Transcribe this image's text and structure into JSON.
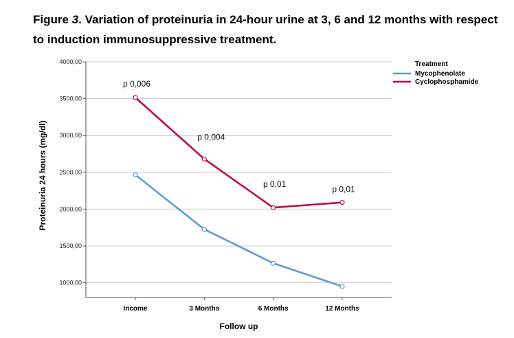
{
  "figure": {
    "title_prefix": "Figure",
    "title_number": "3",
    "title_rest": ". Variation of proteinuria in 24-hour urine at 3, 6 and 12 months with respect to induction immunosuppressive treatment."
  },
  "chart_data": {
    "type": "line",
    "categories": [
      "Income",
      "3 Months",
      "6 Months",
      "12 Months"
    ],
    "xlabel": "Follow up",
    "ylabel": "Proteinuria 24 hours (mg/dl)",
    "ylim": [
      800,
      4000
    ],
    "yticks": [
      "1000,00",
      "1500,00",
      "2000,00",
      "2500,00",
      "3000,00",
      "3500,00",
      "4000,00"
    ],
    "ytick_values": [
      1000,
      1500,
      2000,
      2500,
      3000,
      3500,
      4000
    ],
    "grid": "horizontal",
    "legend": {
      "title": "Treatment",
      "placement": "top-right"
    },
    "series": [
      {
        "name": "Mycophenolate",
        "color": "#5b9bd5",
        "values": [
          2465,
          1725,
          1265,
          950
        ]
      },
      {
        "name": "Cyclophosphamide",
        "color": "#c00d3f",
        "values": [
          3515,
          2680,
          2020,
          2090
        ]
      }
    ],
    "annotations": [
      "p 0,006",
      "p 0,004",
      "p 0,01",
      "p 0,01"
    ]
  }
}
